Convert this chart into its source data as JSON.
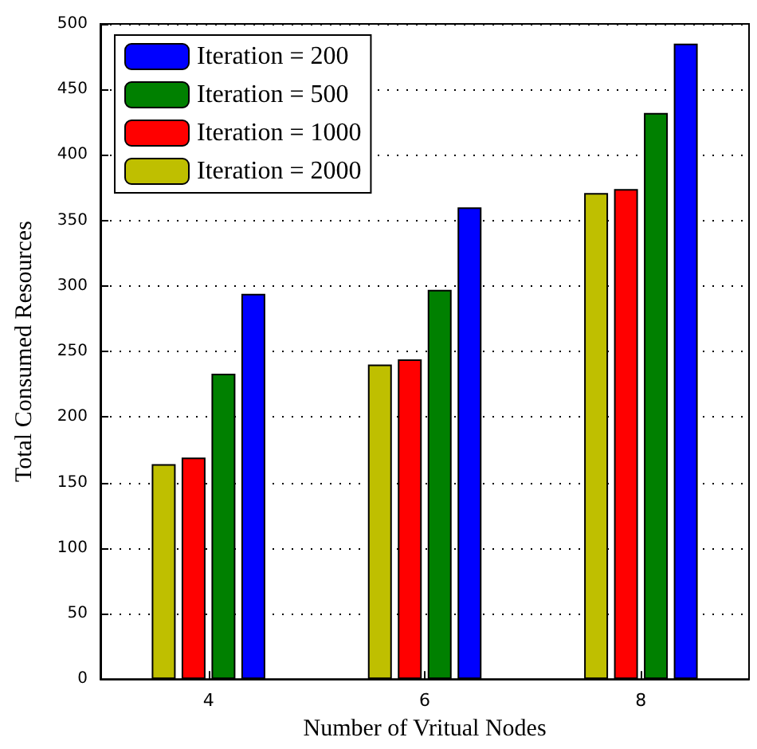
{
  "chart_data": {
    "type": "bar",
    "xlabel": "Number of Vritual Nodes",
    "ylabel": "Total Consumed Resources",
    "categories": [
      "4",
      "6",
      "8"
    ],
    "series": [
      {
        "name": "Iteration = 200",
        "color": "#0000ff",
        "values": [
          294,
          360,
          485
        ]
      },
      {
        "name": "Iteration = 500",
        "color": "#008000",
        "values": [
          233,
          297,
          432
        ]
      },
      {
        "name": "Iteration = 1000",
        "color": "#ff0000",
        "values": [
          169,
          244,
          374
        ]
      },
      {
        "name": "Iteration = 2000",
        "color": "#bfbf00",
        "values": [
          164,
          240,
          371
        ]
      }
    ],
    "ylim": [
      0,
      500
    ],
    "yticks": [
      0,
      50,
      100,
      150,
      200,
      250,
      300,
      350,
      400,
      450,
      500
    ],
    "grid": "y",
    "legend": "top left"
  }
}
